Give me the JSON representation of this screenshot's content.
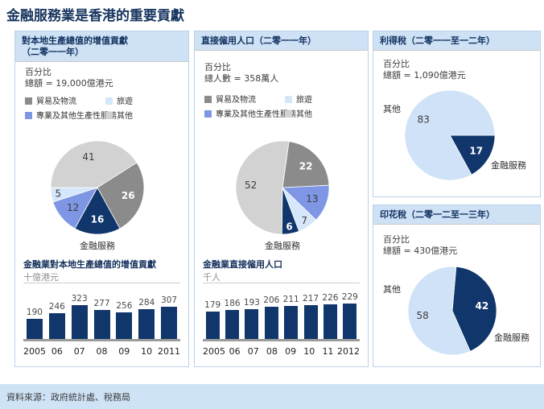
{
  "title": "金融服務業是香港的重要貢獻",
  "footer": {
    "source": "資料來源：政府統計處、稅務局"
  },
  "colors": {
    "navy": "#10366b",
    "dark_gray": "#8b8b8b",
    "medium_blue": "#7e96e4",
    "light_blue": "#d5e7fa",
    "pale_blue": "#cfe2f7",
    "light_gray": "#d2d2d2",
    "header_bg": "#cfe1f4",
    "footer_bg": "#cfe3f6"
  },
  "legend": {
    "items": [
      {
        "label": "貿易及物流",
        "color": "#8b8b8b"
      },
      {
        "label": "旅遊",
        "color": "#d5e7fa"
      },
      {
        "label": "專業及其他生產性服務",
        "color": "#7e96e4"
      },
      {
        "label": "其他",
        "color": "#d2d2d2"
      }
    ]
  },
  "panel1": {
    "header_line1": "對本地生產總值的增值貢獻",
    "header_line2": "（二零一一年）",
    "percent_label": "百分比",
    "total_label": "總額 = 19,000億港元"
  },
  "panel2": {
    "header": "直接僱用人口（二零一一年）",
    "percent_label": "百分比",
    "total_label": "總人數 = 358萬人"
  },
  "panel3": {
    "header": "利得稅（二零一一至一二年）",
    "percent_label": "百分比",
    "total_label": "總額 = 1,090億港元"
  },
  "panel4": {
    "header": "印花稅（二零一二至一三年）",
    "percent_label": "百分比",
    "total_label": "總額 = 430億港元"
  },
  "chart_data": [
    {
      "type": "pie",
      "title": "對本地生產總值的增值貢獻（二零一一年）",
      "unit": "百分比",
      "total": "19,000億港元",
      "start_angle": 57.6,
      "slices": [
        {
          "label": "貿易及物流",
          "value": 26,
          "color": "#8b8b8b",
          "text": "#ffffff"
        },
        {
          "label": "金融服務",
          "value": 16,
          "color": "#10366b",
          "text": "#ffffff"
        },
        {
          "label": "專業及其他生產性服務",
          "value": 12,
          "color": "#7e96e4",
          "text": "#3d3d3d"
        },
        {
          "label": "旅遊",
          "value": 5,
          "color": "#d5e7fa",
          "text": "#3d3d3d"
        },
        {
          "label": "其他",
          "value": 41,
          "color": "#d2d2d2",
          "text": "#3d3d3d"
        }
      ]
    },
    {
      "type": "bar",
      "title": "金融業對本地生產總值的增值貢獻",
      "ylabel": "十億港元",
      "categories": [
        "2005",
        "06",
        "07",
        "08",
        "09",
        "10",
        "2011"
      ],
      "values": [
        190,
        246,
        323,
        277,
        256,
        284,
        307
      ]
    },
    {
      "type": "pie",
      "title": "直接僱用人口（二零一一年）",
      "unit": "百分比",
      "total": "358萬人",
      "start_angle": 8,
      "slices": [
        {
          "label": "貿易及物流",
          "value": 22,
          "color": "#8b8b8b",
          "text": "#ffffff"
        },
        {
          "label": "專業及其他生產性服務",
          "value": 13,
          "color": "#7e96e4",
          "text": "#3d3d3d"
        },
        {
          "label": "旅遊",
          "value": 7,
          "color": "#d5e7fa",
          "text": "#3d3d3d"
        },
        {
          "label": "金融服務",
          "value": 6,
          "color": "#10366b",
          "text": "#ffffff"
        },
        {
          "label": "其他",
          "value": 52,
          "color": "#d2d2d2",
          "text": "#3d3d3d"
        }
      ]
    },
    {
      "type": "bar",
      "title": "金融業直接僱用人口",
      "ylabel": "千人",
      "categories": [
        "2005",
        "06",
        "07",
        "08",
        "09",
        "10",
        "11",
        "2012"
      ],
      "values": [
        179,
        186,
        193,
        206,
        211,
        217,
        226,
        229
      ]
    },
    {
      "type": "pie",
      "title": "利得稅（二零一一至一二年）",
      "unit": "百分比",
      "total": "1,090億港元",
      "start_angle": 90,
      "slices": [
        {
          "label": "金融服務",
          "value": 17,
          "color": "#10366b",
          "text": "#ffffff"
        },
        {
          "label": "其他",
          "value": 83,
          "color": "#cfe2f7",
          "text": "#3d3d3d"
        }
      ]
    },
    {
      "type": "pie",
      "title": "印花稅（二零一二至一三年）",
      "unit": "百分比",
      "total": "430億港元",
      "start_angle": 5,
      "slices": [
        {
          "label": "金融服務",
          "value": 42,
          "color": "#10366b",
          "text": "#ffffff"
        },
        {
          "label": "其他",
          "value": 58,
          "color": "#cfe2f7",
          "text": "#3d3d3d"
        }
      ]
    }
  ]
}
